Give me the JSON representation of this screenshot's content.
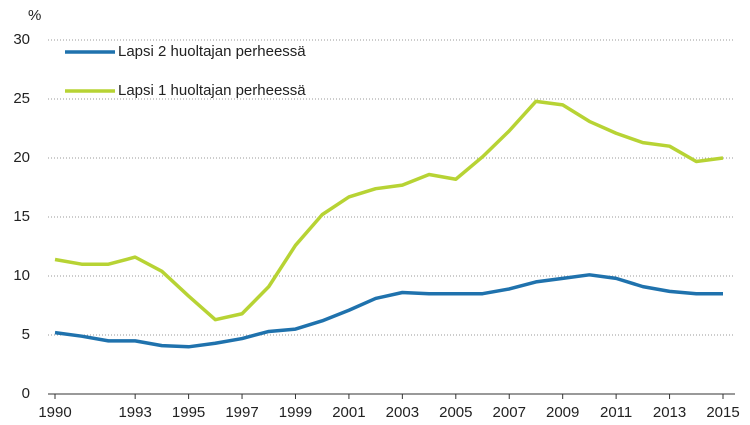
{
  "chart_data": {
    "type": "line",
    "y_label": "%",
    "x": [
      1990,
      1991,
      1992,
      1993,
      1994,
      1995,
      1996,
      1997,
      1998,
      1999,
      2000,
      2001,
      2002,
      2003,
      2004,
      2005,
      2006,
      2007,
      2008,
      2009,
      2010,
      2011,
      2012,
      2013,
      2014,
      2015
    ],
    "series": [
      {
        "name": "Lapsi 2 huoltajan perheessä",
        "color": "#1f72ad",
        "values": [
          5.2,
          4.9,
          4.5,
          4.5,
          4.1,
          4.0,
          4.3,
          4.7,
          5.3,
          5.5,
          6.2,
          7.1,
          8.1,
          8.6,
          8.5,
          8.5,
          8.5,
          8.9,
          9.5,
          9.8,
          10.1,
          9.8,
          9.1,
          8.7,
          8.5,
          8.5
        ]
      },
      {
        "name": "Lapsi 1 huoltajan perheessä",
        "color": "#b7d334",
        "values": [
          11.4,
          11.0,
          11.0,
          11.6,
          10.4,
          8.3,
          6.3,
          6.8,
          9.1,
          12.6,
          15.2,
          16.7,
          17.4,
          17.7,
          18.6,
          18.2,
          20.1,
          22.3,
          24.8,
          24.5,
          23.1,
          22.1,
          21.3,
          21.0,
          19.7,
          20.0
        ]
      }
    ],
    "xlim": [
      1990,
      2015
    ],
    "xticks": [
      1990,
      1993,
      1995,
      1997,
      1999,
      2001,
      2003,
      2005,
      2007,
      2009,
      2011,
      2013,
      2015
    ],
    "ylim": [
      0,
      30
    ],
    "yticks": [
      0,
      5,
      10,
      15,
      20,
      25,
      30
    ],
    "grid": true,
    "legend": "top-left"
  }
}
